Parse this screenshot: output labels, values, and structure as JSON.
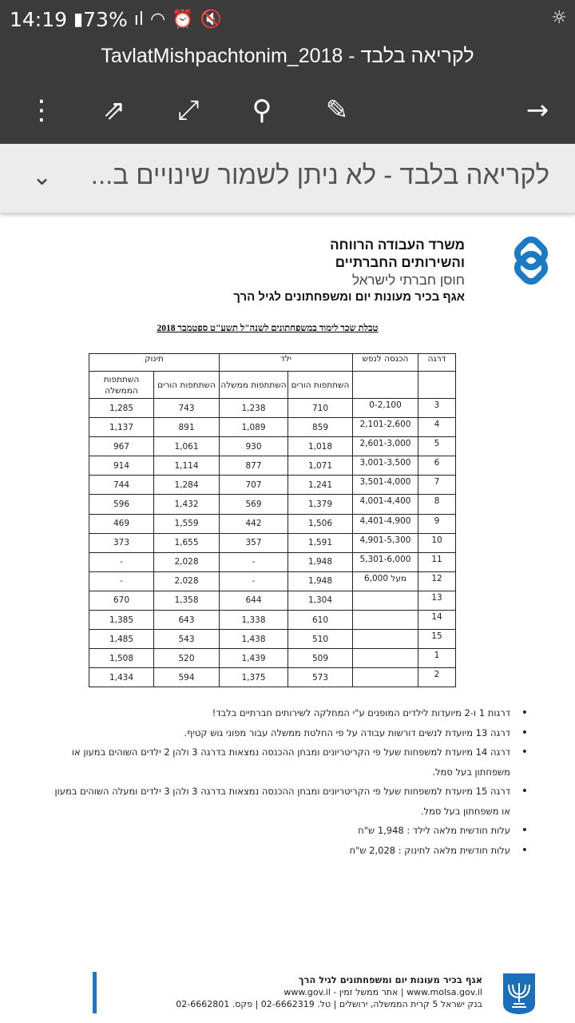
{
  "status_bar": {
    "time": "14:19",
    "battery": "73%"
  },
  "title_bar": {
    "title": "TavlatMishpachtonim_2018 - לקריאה בלבד"
  },
  "toolbar": {
    "icons": [
      "more-vert-icon",
      "share-icon",
      "fullscreen-icon",
      "search-icon",
      "edit-icon",
      "forward-arrow-icon"
    ]
  },
  "banner": {
    "text": "לקריאה בלבד - לא ניתן לשמור שינויים ב..."
  },
  "document": {
    "header": {
      "line1": "משרד העבודה הרווחה",
      "line2": "והשירותים החברתיים",
      "line3": "חוסן חברתי לישראל",
      "line4": "אגף בכיר מעונות יום ומשפחתונים לגיל הרך"
    },
    "title": "טבלת שכר לימוד במשפחתונים לשנה\"ל תשע\"ט ספטמבר 2018",
    "table": {
      "headers": {
        "level": "דרגה",
        "income": "הכנסה לנפש",
        "child": "ילד",
        "baby": "תינוק",
        "parents": "השתתפות הורים",
        "gov_child": "השתתפות ממשלה",
        "gov_baby": "השתתפות הממשלה"
      },
      "rows": [
        [
          "3",
          "0-2,100",
          "710",
          "1,238",
          "743",
          "1,285"
        ],
        [
          "4",
          "2,101-2,600",
          "859",
          "1,089",
          "891",
          "1,137"
        ],
        [
          "5",
          "2,601-3,000",
          "1,018",
          "930",
          "1,061",
          "967"
        ],
        [
          "6",
          "3,001-3,500",
          "1,071",
          "877",
          "1,114",
          "914"
        ],
        [
          "7",
          "3,501-4,000",
          "1,241",
          "707",
          "1,284",
          "744"
        ],
        [
          "8",
          "4,001-4,400",
          "1,379",
          "569",
          "1,432",
          "596"
        ],
        [
          "9",
          "4,401-4,900",
          "1,506",
          "442",
          "1,559",
          "469"
        ],
        [
          "10",
          "4,901-5,300",
          "1,591",
          "357",
          "1,655",
          "373"
        ],
        [
          "11",
          "5,301-6,000",
          "1,948",
          "-",
          "2,028",
          "-"
        ],
        [
          "12",
          "מעל 6,000",
          "1,948",
          "-",
          "2,028",
          "-"
        ],
        [
          "13",
          "",
          "1,304",
          "644",
          "1,358",
          "670"
        ],
        [
          "14",
          "",
          "610",
          "1,338",
          "643",
          "1,385"
        ],
        [
          "15",
          "",
          "510",
          "1,438",
          "543",
          "1,485"
        ],
        [
          "1",
          "",
          "509",
          "1,439",
          "520",
          "1,508"
        ],
        [
          "2",
          "",
          "573",
          "1,375",
          "594",
          "1,434"
        ]
      ]
    },
    "notes": [
      "דרגות 1 ו-2 מיועדות לילדים המופנים ע\"י המחלקה לשירותים חברתיים בלבד!",
      "דרגה 13 מיועדת לנשים דורשות עבודה על פי החלטת ממשלה עבור מפוני גוש קטיף.",
      "דרגה 14 מיועדת למשפחות שעל פי הקריטריונים ומבחן ההכנסה נמצאות בדרגה 3 ולהן 2 ילדים השוהים במעון או משפחתון בעל סמל.",
      "דרגה 15 מיועדת למשפחות שעל פי הקריטריונים ומבחן ההכנסה נמצאות בדרגה 3 ולהן 3 ילדים ומעלה השוהים במעון או משפחתון בעל סמל.",
      "עלות חודשית מלאה לילד : 1,948 ש\"ח",
      "עלות חודשית מלאה לתינוק : 2,028 ש\"ח"
    ],
    "footer": {
      "line1": "אגף בכיר מעונות יום ומשפחתונים לגיל הרך",
      "line2": "www.molsa.gov.il | אתר ממשל זמין - www.gov.il",
      "line3": "בנק ישראל 5 קרית הממשלה, ירושלים | טל. 02-6662319 | פקס. 02-6662801"
    }
  },
  "colors": {
    "toolbar": "#3b3b3b",
    "banner": "#ececec",
    "logo_blue": "#1a7ac4"
  }
}
